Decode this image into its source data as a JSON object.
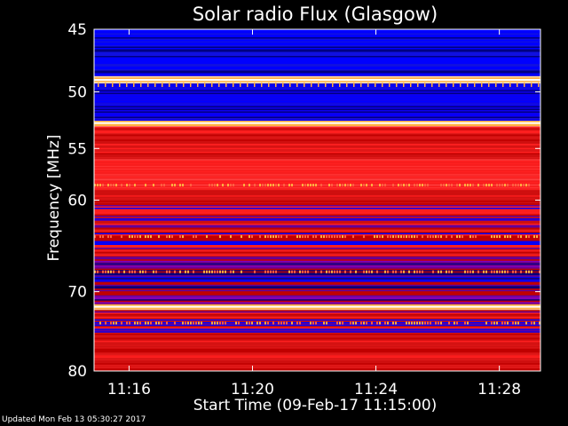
{
  "chart_data": {
    "type": "heatmap",
    "title": "Solar radio Flux (Glasgow)",
    "xlabel": "Start Time (09-Feb-17 11:15:00)",
    "ylabel": "Frequency [MHz]",
    "x_unit": "time (hh:mm)",
    "x_range": [
      "11:14:52",
      "11:29:20"
    ],
    "xticks": [
      "11:16",
      "11:20",
      "11:24",
      "11:28"
    ],
    "y_range": [
      45,
      80
    ],
    "y_scale": "log",
    "yticks": [
      45,
      50,
      55,
      60,
      70,
      80
    ],
    "grid": false,
    "colormap": [
      "#000080",
      "#0000ff",
      "#c00000",
      "#ff2020",
      "#ffb040",
      "#ffffff"
    ],
    "bands": [
      {
        "from": 45.0,
        "to": 48.7,
        "level": "low"
      },
      {
        "from": 48.7,
        "to": 49.3,
        "level": "max"
      },
      {
        "from": 49.3,
        "to": 52.5,
        "level": "low"
      },
      {
        "from": 52.5,
        "to": 53.0,
        "level": "max"
      },
      {
        "from": 53.0,
        "to": 56.0,
        "level": "mid"
      },
      {
        "from": 56.0,
        "to": 59.0,
        "level": "high"
      },
      {
        "from": 59.0,
        "to": 60.5,
        "level": "mid"
      },
      {
        "from": 60.5,
        "to": 66.0,
        "level": "mixed"
      },
      {
        "from": 66.0,
        "to": 71.5,
        "level": "mixed-low"
      },
      {
        "from": 71.5,
        "to": 72.2,
        "level": "max"
      },
      {
        "from": 72.2,
        "to": 75.0,
        "level": "mixed"
      },
      {
        "from": 75.0,
        "to": 80.0,
        "level": "mid"
      }
    ],
    "bright_lines_mhz": [
      49.0,
      52.7,
      71.8
    ],
    "interference_lines_mhz": [
      58.5,
      63.8,
      67.7,
      73.8
    ]
  },
  "footer": {
    "updated": "Updated Mon Feb 13 05:30:27 2017"
  }
}
